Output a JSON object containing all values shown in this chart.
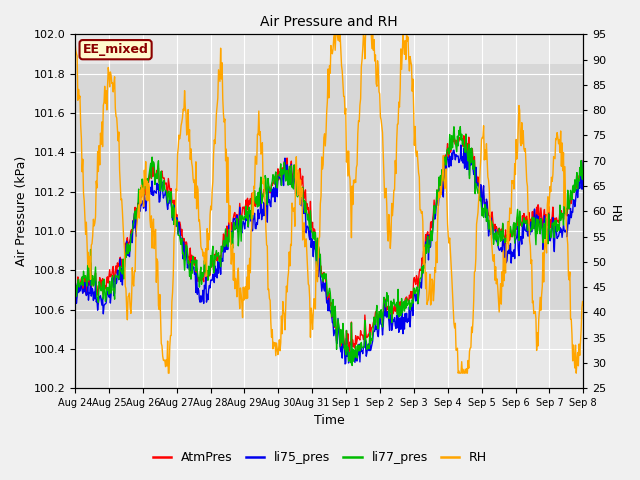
{
  "title": "Air Pressure and RH",
  "xlabel": "Time",
  "ylabel_left": "Air Pressure (kPa)",
  "ylabel_right": "RH",
  "ylim_left": [
    100.2,
    102.0
  ],
  "ylim_right": [
    25,
    95
  ],
  "yticks_left": [
    100.2,
    100.4,
    100.6,
    100.8,
    101.0,
    101.2,
    101.4,
    101.6,
    101.8,
    102.0
  ],
  "yticks_right": [
    25,
    30,
    35,
    40,
    45,
    50,
    55,
    60,
    65,
    70,
    75,
    80,
    85,
    90,
    95
  ],
  "xtick_labels": [
    "Aug 24",
    "Aug 25",
    "Aug 26",
    "Aug 27",
    "Aug 28",
    "Aug 29",
    "Aug 30",
    "Aug 31",
    "Sep 1",
    "Sep 2",
    "Sep 3",
    "Sep 4",
    "Sep 5",
    "Sep 6",
    "Sep 7",
    "Sep 8"
  ],
  "annotation_text": "EE_mixed",
  "annotation_fgcolor": "#8B0000",
  "annotation_bgcolor": "#FFFACD",
  "annotation_edgecolor": "#8B0000",
  "fig_facecolor": "#F0F0F0",
  "axes_facecolor": "#E8E8E8",
  "band_lo": 100.55,
  "band_hi": 101.85,
  "band_color": "#CCCCCC",
  "grid_color": "#FFFFFF",
  "colors": {
    "AtmPres": "#FF0000",
    "li75_pres": "#0000EE",
    "li77_pres": "#00BB00",
    "RH": "#FFA500"
  },
  "linewidth": 1.0,
  "legend_entries": [
    "AtmPres",
    "li75_pres",
    "li77_pres",
    "RH"
  ],
  "title_fontsize": 10,
  "label_fontsize": 9,
  "tick_fontsize": 8,
  "annot_fontsize": 9
}
